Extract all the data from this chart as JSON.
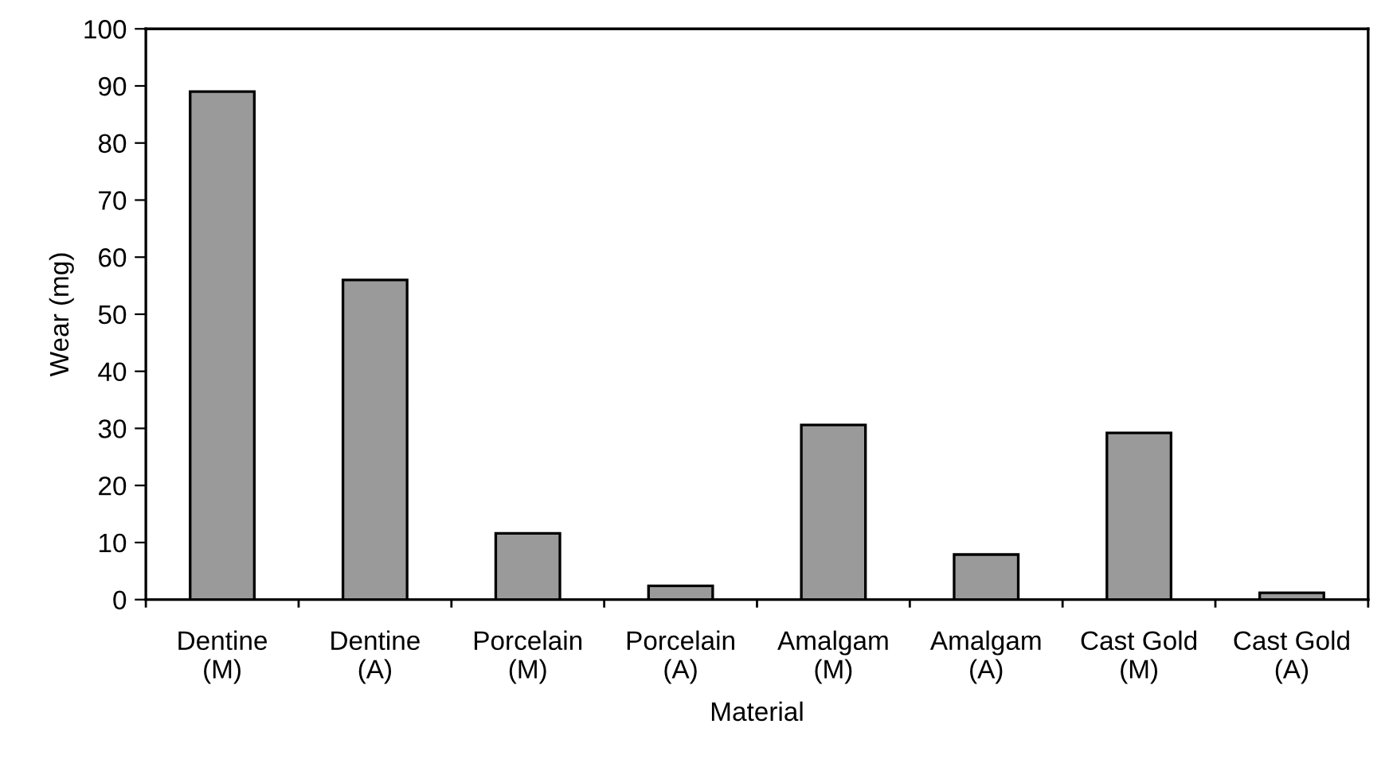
{
  "chart_data": {
    "type": "bar",
    "xlabel": "Material",
    "ylabel": "Wear (mg)",
    "categories": [
      "Dentine\n(M)",
      "Dentine\n(A)",
      "Porcelain\n(M)",
      "Porcelain\n(A)",
      "Amalgam\n(M)",
      "Amalgam\n(A)",
      "Cast Gold\n(M)",
      "Cast Gold\n(A)"
    ],
    "values": [
      89.0,
      56.0,
      11.6,
      2.4,
      30.6,
      7.9,
      29.2,
      1.2
    ],
    "color": "#9a9a9a",
    "ylim": [
      0,
      100
    ],
    "yticks": [
      0,
      10,
      20,
      30,
      40,
      50,
      60,
      70,
      80,
      90,
      100
    ],
    "grid": false,
    "legend": false
  }
}
